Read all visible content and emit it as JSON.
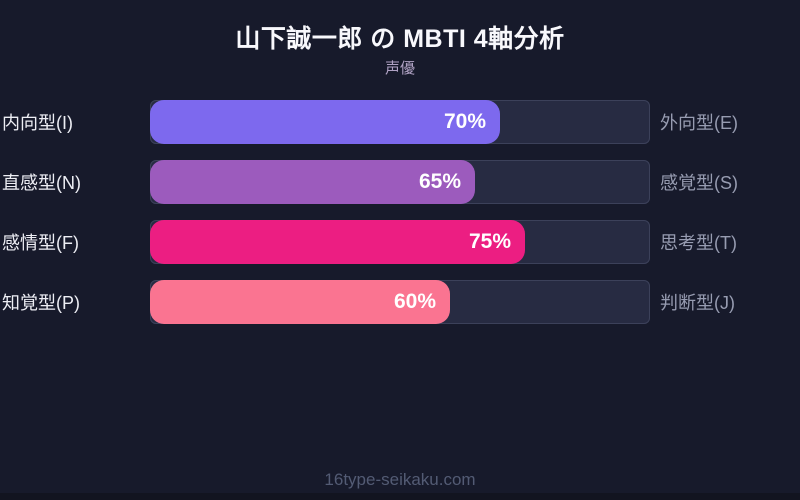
{
  "header": {
    "title": "山下誠一郎 の MBTI 4軸分析",
    "subtitle": "声優"
  },
  "chart_data": {
    "type": "bar",
    "title": "山下誠一郎 の MBTI 4軸分析",
    "subtitle": "声優",
    "orientation": "horizontal",
    "xlim": [
      0,
      100
    ],
    "axes": [
      {
        "left_label": "内向型(I)",
        "right_label": "外向型(E)",
        "value": 70,
        "value_label": "70%",
        "color": "#7d69ee"
      },
      {
        "left_label": "直感型(N)",
        "right_label": "感覚型(S)",
        "value": 65,
        "value_label": "65%",
        "color": "#9c5bbd"
      },
      {
        "left_label": "感情型(F)",
        "right_label": "思考型(T)",
        "value": 75,
        "value_label": "75%",
        "color": "#ec1e82"
      },
      {
        "left_label": "知覚型(P)",
        "right_label": "判断型(J)",
        "value": 60,
        "value_label": "60%",
        "color": "#fa7491"
      }
    ],
    "track_color": "#272b42",
    "track_border_color": "#3c415a",
    "background_color": "#171a2b",
    "legend_position": "none",
    "grid": false
  },
  "footer": {
    "watermark": "16type-seikaku.com"
  }
}
